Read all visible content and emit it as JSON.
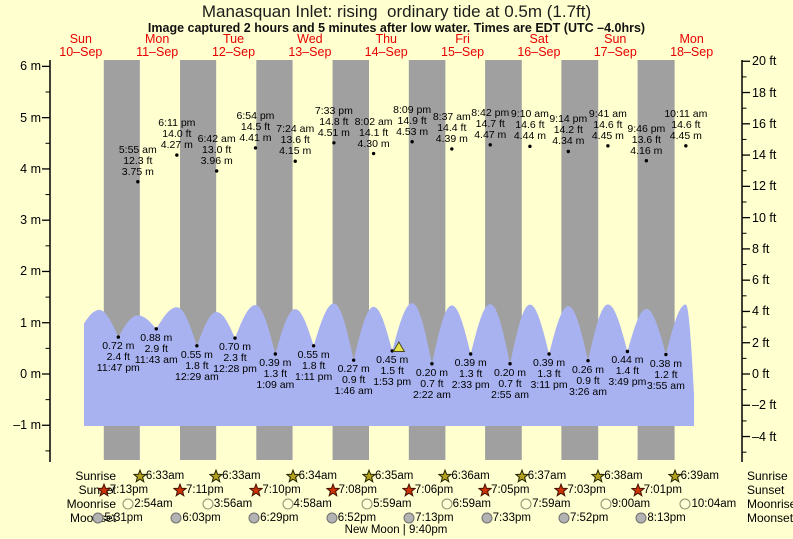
{
  "title": "Manasquan Inlet: rising  ordinary tide at 0.5m (1.7ft)",
  "subtitle": "Image captured 2 hours and 5 minutes after low water. Times are EDT (UTC –4.0hrs)",
  "chart_data": {
    "type": "area",
    "title": "Manasquan Inlet: rising  ordinary tide at 0.5m (1.7ft)",
    "days": [
      {
        "name": "Sun",
        "date": "10–Sep"
      },
      {
        "name": "Mon",
        "date": "11–Sep"
      },
      {
        "name": "Tue",
        "date": "12–Sep"
      },
      {
        "name": "Wed",
        "date": "13–Sep"
      },
      {
        "name": "Thu",
        "date": "14–Sep"
      },
      {
        "name": "Fri",
        "date": "15–Sep"
      },
      {
        "name": "Sat",
        "date": "16–Sep"
      },
      {
        "name": "Sun",
        "date": "17–Sep"
      },
      {
        "name": "Mon",
        "date": "18–Sep"
      }
    ],
    "y_axis_left": {
      "unit": "m",
      "labels": [
        "6 m",
        "5 m",
        "4 m",
        "3 m",
        "2 m",
        "1 m",
        "0 m",
        "–1 m"
      ],
      "values": [
        6,
        5,
        4,
        3,
        2,
        1,
        0,
        -1
      ],
      "range": [
        -1,
        6
      ]
    },
    "y_axis_right": {
      "unit": "ft",
      "labels": [
        "20 ft",
        "18 ft",
        "16 ft",
        "14 ft",
        "12 ft",
        "10 ft",
        "8 ft",
        "6 ft",
        "4 ft",
        "2 ft",
        "0 ft",
        "–2 ft",
        "–4 ft"
      ],
      "values": [
        20,
        18,
        16,
        14,
        12,
        10,
        8,
        6,
        4,
        2,
        0,
        -2,
        -4
      ],
      "range": [
        -4,
        20
      ]
    },
    "tide_events": [
      {
        "day": 0,
        "type": "L",
        "time": "11:47 pm",
        "m": "0.72",
        "ft": "2.4"
      },
      {
        "day": 1,
        "type": "H",
        "time": "5:55 am",
        "m": "3.75",
        "ft": "12.3"
      },
      {
        "day": 1,
        "type": "L",
        "time": "11:43 am",
        "m": "0.88",
        "ft": "2.9"
      },
      {
        "day": 1,
        "type": "H",
        "time": "6:11 pm",
        "m": "4.27",
        "ft": "14.0"
      },
      {
        "day": 2,
        "type": "L",
        "time": "12:29 am",
        "m": "0.55",
        "ft": "1.8"
      },
      {
        "day": 2,
        "type": "H",
        "time": "6:42 am",
        "m": "3.96",
        "ft": "13.0"
      },
      {
        "day": 2,
        "type": "L",
        "time": "12:28 pm",
        "m": "0.70",
        "ft": "2.3"
      },
      {
        "day": 2,
        "type": "H",
        "time": "6:54 pm",
        "m": "4.41",
        "ft": "14.5"
      },
      {
        "day": 3,
        "type": "L",
        "time": "1:09 am",
        "m": "0.39",
        "ft": "1.3"
      },
      {
        "day": 3,
        "type": "H",
        "time": "7:24 am",
        "m": "4.15",
        "ft": "13.6"
      },
      {
        "day": 3,
        "type": "L",
        "time": "1:11 pm",
        "m": "0.55",
        "ft": "1.8"
      },
      {
        "day": 3,
        "type": "H",
        "time": "7:33 pm",
        "m": "4.51",
        "ft": "14.8"
      },
      {
        "day": 4,
        "type": "L",
        "time": "1:46 am",
        "m": "0.27",
        "ft": "0.9"
      },
      {
        "day": 4,
        "type": "H",
        "time": "8:02 am",
        "m": "4.30",
        "ft": "14.1"
      },
      {
        "day": 4,
        "type": "L",
        "time": "1:53 pm",
        "m": "0.45",
        "ft": "1.5"
      },
      {
        "day": 4,
        "type": "H",
        "time": "8:09 pm",
        "m": "4.53",
        "ft": "14.9"
      },
      {
        "day": 5,
        "type": "L",
        "time": "2:22 am",
        "m": "0.20",
        "ft": "0.7"
      },
      {
        "day": 5,
        "type": "H",
        "time": "8:37 am",
        "m": "4.39",
        "ft": "14.4"
      },
      {
        "day": 5,
        "type": "L",
        "time": "2:33 pm",
        "m": "0.39",
        "ft": "1.3"
      },
      {
        "day": 5,
        "type": "H",
        "time": "8:42 pm",
        "m": "4.47",
        "ft": "14.7"
      },
      {
        "day": 6,
        "type": "L",
        "time": "2:55 am",
        "m": "0.20",
        "ft": "0.7"
      },
      {
        "day": 6,
        "type": "H",
        "time": "9:10 am",
        "m": "4.44",
        "ft": "14.6"
      },
      {
        "day": 6,
        "type": "L",
        "time": "3:11 pm",
        "m": "0.39",
        "ft": "1.3"
      },
      {
        "day": 6,
        "type": "H",
        "time": "9:14 pm",
        "m": "4.34",
        "ft": "14.2"
      },
      {
        "day": 7,
        "type": "L",
        "time": "3:26 am",
        "m": "0.26",
        "ft": "0.9"
      },
      {
        "day": 7,
        "type": "H",
        "time": "9:41 am",
        "m": "4.45",
        "ft": "14.6"
      },
      {
        "day": 7,
        "type": "L",
        "time": "3:49 pm",
        "m": "0.44",
        "ft": "1.4"
      },
      {
        "day": 7,
        "type": "H",
        "time": "9:46 pm",
        "m": "4.16",
        "ft": "13.6"
      },
      {
        "day": 8,
        "type": "L",
        "time": "3:55 am",
        "m": "0.38",
        "ft": "1.2"
      },
      {
        "day": 8,
        "type": "H",
        "time": "10:11 am",
        "m": "4.45",
        "ft": "14.6"
      }
    ],
    "marker": {
      "day": 4,
      "time": "3:58 pm",
      "near_low": "1:53 pm"
    }
  },
  "astro": {
    "rows": [
      {
        "label": "Sunrise",
        "icon": "star",
        "icon_fill": "#b3a11e",
        "icon_stroke": "#222200",
        "entries": [
          {
            "day": 1,
            "time": "6:33am"
          },
          {
            "day": 2,
            "time": "6:33am"
          },
          {
            "day": 3,
            "time": "6:34am"
          },
          {
            "day": 4,
            "time": "6:35am"
          },
          {
            "day": 5,
            "time": "6:36am"
          },
          {
            "day": 6,
            "time": "6:37am"
          },
          {
            "day": 7,
            "time": "6:38am"
          },
          {
            "day": 8,
            "time": "6:39am"
          }
        ]
      },
      {
        "label": "Sunset",
        "icon": "star",
        "icon_fill": "#cc3305",
        "icon_stroke": "#431000",
        "entries": [
          {
            "day": 0,
            "time": "7:13pm"
          },
          {
            "day": 1,
            "time": "7:11pm"
          },
          {
            "day": 2,
            "time": "7:10pm"
          },
          {
            "day": 3,
            "time": "7:08pm"
          },
          {
            "day": 4,
            "time": "7:06pm"
          },
          {
            "day": 5,
            "time": "7:05pm"
          },
          {
            "day": 6,
            "time": "7:03pm"
          },
          {
            "day": 7,
            "time": "7:01pm"
          }
        ]
      },
      {
        "label": "Moonrise",
        "icon": "circle",
        "icon_fill": "#ffffd8",
        "icon_stroke": "#8f8f6f",
        "entries": [
          {
            "day": 1,
            "time": "2:54am"
          },
          {
            "day": 2,
            "time": "3:56am"
          },
          {
            "day": 3,
            "time": "4:58am"
          },
          {
            "day": 4,
            "time": "5:59am"
          },
          {
            "day": 5,
            "time": "6:59am"
          },
          {
            "day": 6,
            "time": "7:59am"
          },
          {
            "day": 7,
            "time": "9:00am"
          },
          {
            "day": 8,
            "time": "10:04am"
          }
        ]
      },
      {
        "label": "Moonset",
        "icon": "circle",
        "icon_fill": "#b3b3b3",
        "icon_stroke": "#6f6f6f",
        "entries": [
          {
            "day": 0,
            "time": "5:31pm"
          },
          {
            "day": 1,
            "time": "6:03pm"
          },
          {
            "day": 2,
            "time": "6:29pm"
          },
          {
            "day": 3,
            "time": "6:52pm"
          },
          {
            "day": 4,
            "time": "7:13pm"
          },
          {
            "day": 5,
            "time": "7:33pm"
          },
          {
            "day": 6,
            "time": "7:52pm"
          },
          {
            "day": 7,
            "time": "8:13pm"
          }
        ]
      }
    ],
    "footer": "New Moon | 9:40pm"
  },
  "colors": {
    "background": "#ffffd0",
    "night_band": "#a0a0a0",
    "tide_fill": "#a8b2f0",
    "date_red": "#e80000",
    "marker_fill": "#e8e44e",
    "axis": "#000000"
  }
}
